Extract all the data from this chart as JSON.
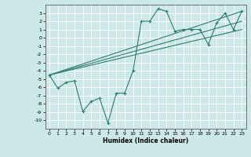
{
  "bg_color": "#cce8e8",
  "grid_color": "#ffffff",
  "line_color": "#2e7d6e",
  "xlabel": "Humidex (Indice chaleur)",
  "x_ticks": [
    0,
    1,
    2,
    3,
    4,
    5,
    6,
    7,
    8,
    9,
    10,
    11,
    12,
    13,
    14,
    15,
    16,
    17,
    18,
    19,
    20,
    21,
    22,
    23
  ],
  "xlim": [
    -0.5,
    23.5
  ],
  "ylim": [
    -11,
    4
  ],
  "y_ticks": [
    3,
    2,
    1,
    0,
    -1,
    -2,
    -3,
    -4,
    -5,
    -6,
    -7,
    -8,
    -9,
    -10
  ],
  "scatter_x": [
    0,
    1,
    2,
    3,
    4,
    5,
    6,
    7,
    8,
    9,
    10,
    11,
    12,
    13,
    14,
    15,
    16,
    17,
    18,
    19,
    20,
    21,
    22,
    23
  ],
  "scatter_y": [
    -4.5,
    -6.1,
    -5.4,
    -5.2,
    -8.9,
    -7.7,
    -7.3,
    -10.3,
    -6.7,
    -6.7,
    -4.0,
    2.0,
    2.0,
    3.5,
    3.2,
    0.8,
    1.0,
    1.0,
    1.0,
    -0.8,
    1.8,
    3.0,
    1.0,
    3.2
  ],
  "line1_x": [
    0,
    23
  ],
  "line1_y": [
    -4.5,
    3.2
  ],
  "line2_x": [
    0,
    23
  ],
  "line2_y": [
    -4.5,
    1.0
  ],
  "line3_x": [
    0,
    23
  ],
  "line3_y": [
    -4.5,
    2.0
  ]
}
